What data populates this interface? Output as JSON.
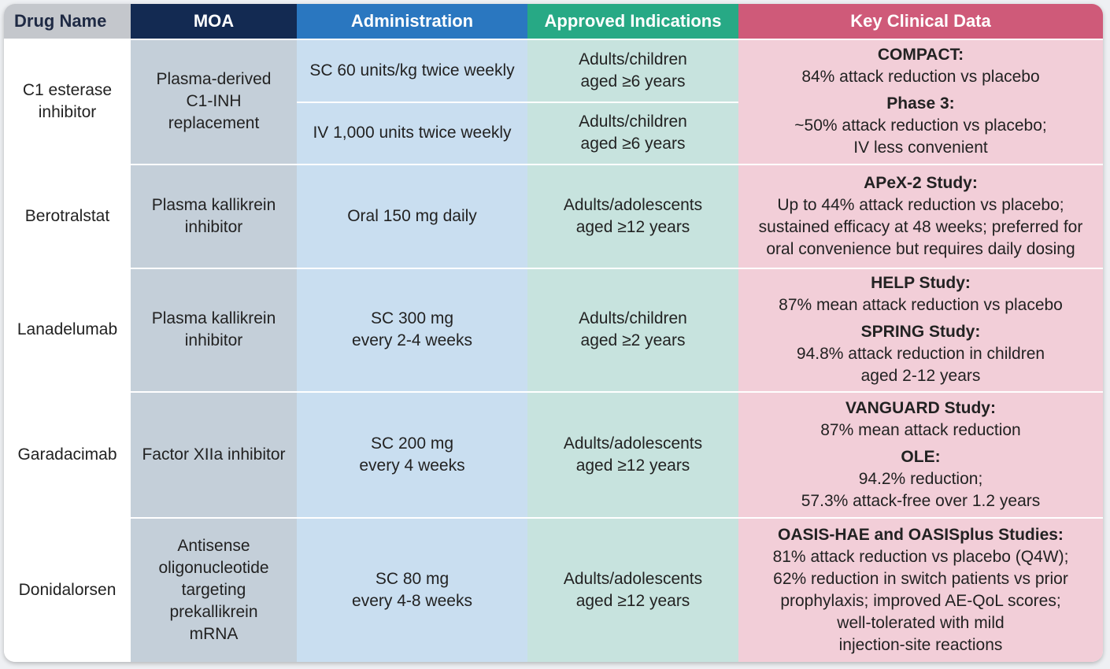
{
  "headers": {
    "drug": "Drug Name",
    "moa": "MOA",
    "admin": "Administration",
    "indications": "Approved Indications",
    "data": "Key Clinical Data"
  },
  "rows": [
    {
      "drug": [
        "C1 esterase",
        "inhibitor"
      ],
      "moa": [
        "Plasma-derived",
        "C1-INH replacement"
      ],
      "admin_a": [
        "SC 60 units/kg twice weekly"
      ],
      "ind_a": [
        "Adults/children",
        "aged ≥6 years"
      ],
      "admin_b": [
        "IV 1,000 units twice weekly"
      ],
      "ind_b": [
        "Adults/children",
        "aged ≥6 years"
      ],
      "data": [
        {
          "heading": "COMPACT:",
          "lines": [
            "84% attack reduction vs placebo"
          ]
        },
        {
          "heading": "Phase 3:",
          "lines": [
            "~50% attack reduction vs placebo;",
            "IV less convenient"
          ]
        }
      ]
    },
    {
      "drug": [
        "Berotralstat"
      ],
      "moa": [
        "Plasma kallikrein",
        "inhibitor"
      ],
      "admin": [
        "Oral 150 mg daily"
      ],
      "ind": [
        "Adults/adolescents",
        "aged ≥12 years"
      ],
      "data": [
        {
          "heading": "APeX-2 Study:",
          "lines": [
            "Up to 44% attack reduction vs placebo;",
            "sustained efficacy at 48 weeks; preferred for",
            "oral convenience but requires daily dosing"
          ]
        }
      ]
    },
    {
      "drug": [
        "Lanadelumab"
      ],
      "moa": [
        "Plasma kallikrein",
        "inhibitor"
      ],
      "admin": [
        "SC 300 mg",
        "every 2-4 weeks"
      ],
      "ind": [
        "Adults/children",
        "aged ≥2 years"
      ],
      "data": [
        {
          "heading": "HELP Study:",
          "lines": [
            "87% mean attack reduction vs placebo"
          ]
        },
        {
          "heading": "SPRING Study:",
          "lines": [
            "94.8% attack reduction in children",
            "aged 2-12 years"
          ]
        }
      ]
    },
    {
      "drug": [
        "Garadacimab"
      ],
      "moa": [
        "Factor XIIa inhibitor"
      ],
      "admin": [
        "SC 200 mg",
        "every 4 weeks"
      ],
      "ind": [
        "Adults/adolescents",
        "aged ≥12 years"
      ],
      "data": [
        {
          "heading": "VANGUARD Study:",
          "lines": [
            "87% mean attack reduction"
          ]
        },
        {
          "heading": "OLE:",
          "lines": [
            "94.2% reduction;",
            "57.3% attack-free over 1.2 years"
          ]
        }
      ]
    },
    {
      "drug": [
        "Donidalorsen"
      ],
      "moa": [
        "Antisense",
        "oligonucleotide",
        "targeting",
        "prekallikrein",
        "mRNA"
      ],
      "admin": [
        "SC 80 mg",
        "every 4-8 weeks"
      ],
      "ind": [
        "Adults/adolescents",
        "aged ≥12 years"
      ],
      "data": [
        {
          "heading": "OASIS-HAE and OASISplus Studies:",
          "lines": [
            "81% attack reduction vs placebo (Q4W);",
            "62% reduction in switch patients vs prior",
            "prophylaxis; improved AE-QoL scores;",
            "well-tolerated with mild",
            "injection-site reactions"
          ]
        }
      ]
    }
  ]
}
